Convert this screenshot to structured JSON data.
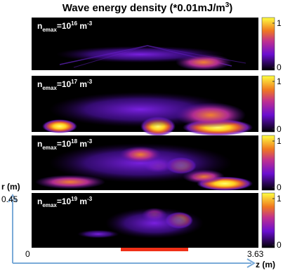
{
  "title": {
    "main": "Wave energy density (*0.01mJ/m",
    "exp": "3",
    "end": ")"
  },
  "panels": [
    {
      "label": {
        "n": "n",
        "sub": "emax",
        "eq": "=10",
        "exp": "16",
        "unit": " m",
        "unitexp": "-3"
      },
      "colorbar_ticks": [
        0,
        1
      ]
    },
    {
      "label": {
        "n": "n",
        "sub": "emax",
        "eq": "=10",
        "exp": "17",
        "unit": " m",
        "unitexp": "-3"
      },
      "colorbar_ticks": [
        0,
        1
      ]
    },
    {
      "label": {
        "n": "n",
        "sub": "emax",
        "eq": "=10",
        "exp": "18",
        "unit": " m",
        "unitexp": "-3"
      },
      "colorbar_ticks": [
        0,
        1
      ]
    },
    {
      "label": {
        "n": "n",
        "sub": "emax",
        "eq": "=10",
        "exp": "19",
        "unit": " m",
        "unitexp": "-3"
      },
      "colorbar_ticks": [
        0,
        1
      ]
    }
  ],
  "axes": {
    "r_label": "r (m)",
    "r_max": 0.45,
    "z_label": "z (m)",
    "z_min": 0,
    "z_max": 3.63
  }
}
